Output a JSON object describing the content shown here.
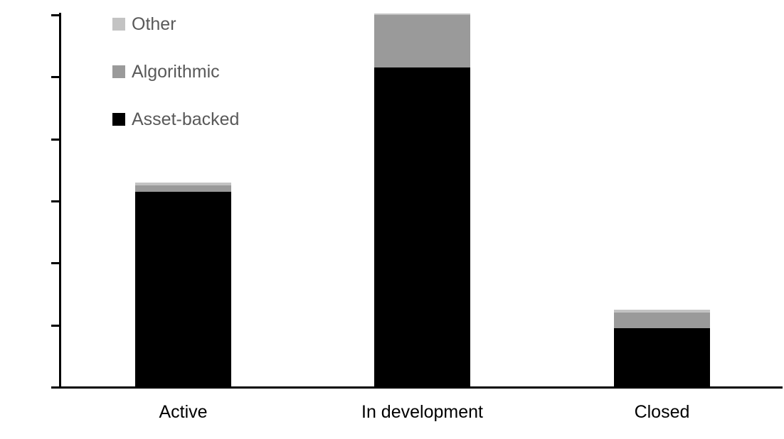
{
  "chart_data": {
    "type": "bar",
    "stacked": true,
    "title": "",
    "xlabel": "",
    "ylabel": "",
    "categories": [
      "Active",
      "In development",
      "Closed"
    ],
    "series": [
      {
        "name": "Asset-backed",
        "color": "#000000",
        "values": [
          63,
          103,
          19
        ]
      },
      {
        "name": "Algorithmic",
        "color": "#9a9a9a",
        "values": [
          2,
          17,
          5
        ]
      },
      {
        "name": "Other",
        "color": "#c3c3c3",
        "values": [
          1,
          0.5,
          1
        ]
      }
    ],
    "ylim": [
      0,
      120
    ],
    "yticks": [
      0,
      20,
      40,
      60,
      80,
      100,
      120
    ],
    "grid": false,
    "legend_position": "top-left-inside",
    "legend_order": [
      "Other",
      "Algorithmic",
      "Asset-backed"
    ],
    "legend_text_color": "#595959",
    "axis_color": "#000000",
    "tick_label_color": "#000000",
    "category_label_color": "#000000",
    "background_color": "#ffffff"
  }
}
